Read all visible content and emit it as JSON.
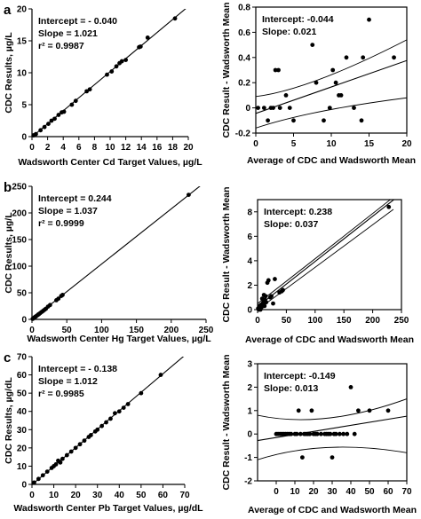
{
  "chart_data": [
    {
      "panel": "a",
      "type": "scatter",
      "xlabel": "Wadsworth Center Cd Target Values, µg/L",
      "ylabel": "CDC Results, µg/L",
      "xlim": [
        0,
        20
      ],
      "ylim": [
        0,
        20
      ],
      "xticks": [
        0,
        2,
        4,
        6,
        8,
        10,
        12,
        14,
        16,
        18,
        20
      ],
      "yticks": [
        0,
        5,
        10,
        15,
        20
      ],
      "stats": [
        "Intercept = - 0.040",
        "Slope = 1.021",
        "r² = 0.9987"
      ],
      "fit": {
        "intercept": -0.04,
        "slope": 1.021
      },
      "points": [
        [
          0.2,
          0.2
        ],
        [
          0.5,
          0.4
        ],
        [
          1.1,
          1.0
        ],
        [
          1.6,
          1.5
        ],
        [
          2.1,
          2.0
        ],
        [
          2.5,
          2.5
        ],
        [
          2.9,
          2.8
        ],
        [
          3.4,
          3.4
        ],
        [
          3.8,
          3.8
        ],
        [
          4.1,
          3.9
        ],
        [
          5.1,
          5.0
        ],
        [
          5.6,
          5.6
        ],
        [
          7.0,
          7.1
        ],
        [
          7.4,
          7.4
        ],
        [
          9.6,
          9.7
        ],
        [
          10.2,
          10.2
        ],
        [
          10.8,
          11.0
        ],
        [
          11.2,
          11.5
        ],
        [
          11.5,
          11.8
        ],
        [
          12.0,
          12.0
        ],
        [
          13.7,
          14.0
        ],
        [
          13.9,
          14.1
        ],
        [
          14.8,
          15.5
        ],
        [
          18.3,
          18.5
        ]
      ]
    },
    {
      "panel": "",
      "type": "scatter",
      "xlabel": "Average of CDC and Wadsworth Mean",
      "ylabel": "CDC Result - Wadsworth Mean",
      "xlim": [
        0,
        20
      ],
      "ylim": [
        -0.2,
        0.8
      ],
      "xticks": [
        0,
        5,
        10,
        15,
        20
      ],
      "yticks": [
        -0.2,
        0,
        0.2,
        0.4,
        0.6,
        0.8
      ],
      "yticklabels": [
        "-0.2",
        "0",
        "0.2",
        "0.4",
        "0.6",
        "0.8"
      ],
      "stats": [
        "Intercept:  -0.044",
        "Slope:  0.021"
      ],
      "fit": {
        "intercept": -0.044,
        "slope": 0.021
      },
      "band": {
        "lower": [
          [
            0,
            -0.16
          ],
          [
            7,
            -0.02
          ],
          [
            20,
            0.08
          ]
        ],
        "upper": [
          [
            0,
            0.09
          ],
          [
            7,
            0.14
          ],
          [
            20,
            0.54
          ]
        ]
      },
      "points": [
        [
          0.3,
          0
        ],
        [
          1.1,
          0
        ],
        [
          1.6,
          -0.1
        ],
        [
          2.0,
          0
        ],
        [
          2.3,
          0
        ],
        [
          2.6,
          0.3
        ],
        [
          3.0,
          0.3
        ],
        [
          3.2,
          0
        ],
        [
          4.0,
          0.1
        ],
        [
          4.5,
          0
        ],
        [
          5.0,
          -0.1
        ],
        [
          7.5,
          0.5
        ],
        [
          8.0,
          0.2
        ],
        [
          9.0,
          -0.1
        ],
        [
          9.8,
          0
        ],
        [
          10.2,
          0.3
        ],
        [
          10.6,
          0.2
        ],
        [
          11.0,
          0.1
        ],
        [
          11.3,
          0.1
        ],
        [
          12.0,
          0.4
        ],
        [
          13.0,
          0
        ],
        [
          14.0,
          -0.1
        ],
        [
          14.2,
          0.4
        ],
        [
          15.0,
          0.7
        ],
        [
          18.3,
          0.4
        ]
      ]
    },
    {
      "panel": "b",
      "type": "scatter",
      "xlabel": "Wadsworth Center Hg Target Values, µg/L",
      "ylabel": "CDC Results, µg/L",
      "xlim": [
        0,
        250
      ],
      "ylim": [
        0,
        250
      ],
      "xticks": [
        0,
        50,
        100,
        150,
        200,
        250
      ],
      "yticks": [
        0,
        50,
        100,
        150,
        200,
        250
      ],
      "stats": [
        "Intercept = 0.244",
        "Slope = 1.037",
        "r² = 0.9999"
      ],
      "fit": {
        "intercept": 0.244,
        "slope": 1.037
      },
      "points": [
        [
          1,
          1
        ],
        [
          2,
          2
        ],
        [
          3,
          3
        ],
        [
          4,
          4
        ],
        [
          5,
          5
        ],
        [
          6,
          6
        ],
        [
          8,
          8
        ],
        [
          9,
          9
        ],
        [
          10,
          10
        ],
        [
          12,
          12
        ],
        [
          14,
          14
        ],
        [
          16,
          16
        ],
        [
          18,
          18
        ],
        [
          20,
          20
        ],
        [
          23,
          24
        ],
        [
          26,
          27
        ],
        [
          35,
          36
        ],
        [
          38,
          39
        ],
        [
          42,
          44
        ],
        [
          44,
          46
        ],
        [
          225,
          234
        ]
      ]
    },
    {
      "panel": "",
      "type": "scatter",
      "xlabel": "Average of CDC and Wadsworth Mean",
      "ylabel": "CDC Result - Wadsworth Mean",
      "xlim": [
        0,
        250
      ],
      "ylim": [
        0,
        9
      ],
      "xticks": [
        0,
        50,
        100,
        150,
        200,
        250
      ],
      "yticks": [
        0,
        2,
        4,
        6,
        8
      ],
      "stats": [
        "Intercept:  0.238",
        "Slope:  0.037"
      ],
      "fit": {
        "intercept": 0.238,
        "slope": 0.037
      },
      "band": {
        "lower": [
          [
            0,
            0
          ],
          [
            50,
            1.7
          ],
          [
            236,
            8.2
          ]
        ],
        "upper": [
          [
            0,
            0.5
          ],
          [
            50,
            2.3
          ],
          [
            236,
            9.2
          ]
        ]
      },
      "points": [
        [
          1,
          0.1
        ],
        [
          2,
          0
        ],
        [
          3,
          0.3
        ],
        [
          4,
          0.2
        ],
        [
          5,
          0
        ],
        [
          6,
          0.4
        ],
        [
          7,
          0.2
        ],
        [
          8,
          0.9
        ],
        [
          9,
          0.5
        ],
        [
          10,
          0.6
        ],
        [
          11,
          1.2
        ],
        [
          12,
          0.3
        ],
        [
          13,
          0.8
        ],
        [
          14,
          1.1
        ],
        [
          15,
          0.6
        ],
        [
          17,
          2.2
        ],
        [
          19,
          2.4
        ],
        [
          22,
          1.0
        ],
        [
          24,
          1.1
        ],
        [
          27,
          0.5
        ],
        [
          30,
          2.5
        ],
        [
          38,
          1.4
        ],
        [
          42,
          1.5
        ],
        [
          44,
          1.6
        ],
        [
          228,
          8.4
        ]
      ]
    },
    {
      "panel": "c",
      "type": "scatter",
      "xlabel": "Wadsworth Center Pb Target Values, µg/dL",
      "ylabel": "CDC Results, µg/dL",
      "xlim": [
        0,
        70
      ],
      "ylim": [
        0,
        70
      ],
      "xticks": [
        0,
        10,
        20,
        30,
        40,
        50,
        60,
        70
      ],
      "yticks": [
        0,
        10,
        20,
        30,
        40,
        50,
        60,
        70
      ],
      "stats": [
        "Intercept = - 0.138",
        "Slope = 1.012",
        "r² = 0.9985"
      ],
      "fit": {
        "intercept": -0.138,
        "slope": 1.012
      },
      "points": [
        [
          1,
          1
        ],
        [
          3,
          3
        ],
        [
          5,
          5
        ],
        [
          7,
          7
        ],
        [
          9,
          9
        ],
        [
          10,
          10
        ],
        [
          11,
          11
        ],
        [
          12,
          13
        ],
        [
          13,
          12
        ],
        [
          14,
          14
        ],
        [
          16,
          16
        ],
        [
          18,
          18
        ],
        [
          20,
          20
        ],
        [
          22,
          22
        ],
        [
          24,
          24
        ],
        [
          26,
          26
        ],
        [
          27,
          27
        ],
        [
          29,
          29
        ],
        [
          30,
          30
        ],
        [
          32,
          32
        ],
        [
          34,
          34
        ],
        [
          36,
          36
        ],
        [
          38,
          39
        ],
        [
          40,
          40
        ],
        [
          42,
          42
        ],
        [
          44,
          44
        ],
        [
          50,
          50
        ],
        [
          59,
          60
        ]
      ]
    },
    {
      "panel": "",
      "type": "scatter",
      "xlabel": "Average of CDC and Wadsworth Mean",
      "ylabel": "CDC Result - Wadsworth Mean",
      "xlim": [
        -10,
        70
      ],
      "ylim": [
        -2,
        3
      ],
      "xticks": [
        0,
        10,
        20,
        30,
        40,
        50,
        60,
        70
      ],
      "yticks": [
        -2,
        -1,
        0,
        1,
        2,
        3
      ],
      "stats": [
        "Intercept:  -0.149",
        "Slope:  0.013"
      ],
      "fit": {
        "intercept": -0.149,
        "slope": 0.013
      },
      "band": {
        "lower": [
          [
            -10,
            -1.1
          ],
          [
            25,
            -0.2
          ],
          [
            70,
            -0.8
          ]
        ],
        "upper": [
          [
            -10,
            0.8
          ],
          [
            25,
            0.2
          ],
          [
            70,
            1.5
          ]
        ]
      },
      "points": [
        [
          0,
          0
        ],
        [
          1,
          0
        ],
        [
          2,
          0
        ],
        [
          3,
          0
        ],
        [
          4,
          0
        ],
        [
          5,
          0
        ],
        [
          6,
          0
        ],
        [
          7,
          0
        ],
        [
          8,
          0
        ],
        [
          10,
          0
        ],
        [
          11,
          0
        ],
        [
          12,
          1
        ],
        [
          13,
          0
        ],
        [
          14,
          -1
        ],
        [
          15,
          0
        ],
        [
          16,
          0
        ],
        [
          17,
          0
        ],
        [
          18,
          0
        ],
        [
          19,
          1
        ],
        [
          20,
          0
        ],
        [
          21,
          0
        ],
        [
          22,
          0
        ],
        [
          24,
          0
        ],
        [
          26,
          0
        ],
        [
          27,
          0
        ],
        [
          28,
          0
        ],
        [
          29,
          0
        ],
        [
          30,
          -1
        ],
        [
          31,
          0
        ],
        [
          32,
          0
        ],
        [
          34,
          0
        ],
        [
          36,
          0
        ],
        [
          38,
          0
        ],
        [
          40,
          2
        ],
        [
          42,
          0
        ],
        [
          44,
          1
        ],
        [
          50,
          1
        ],
        [
          60,
          1
        ]
      ]
    }
  ]
}
